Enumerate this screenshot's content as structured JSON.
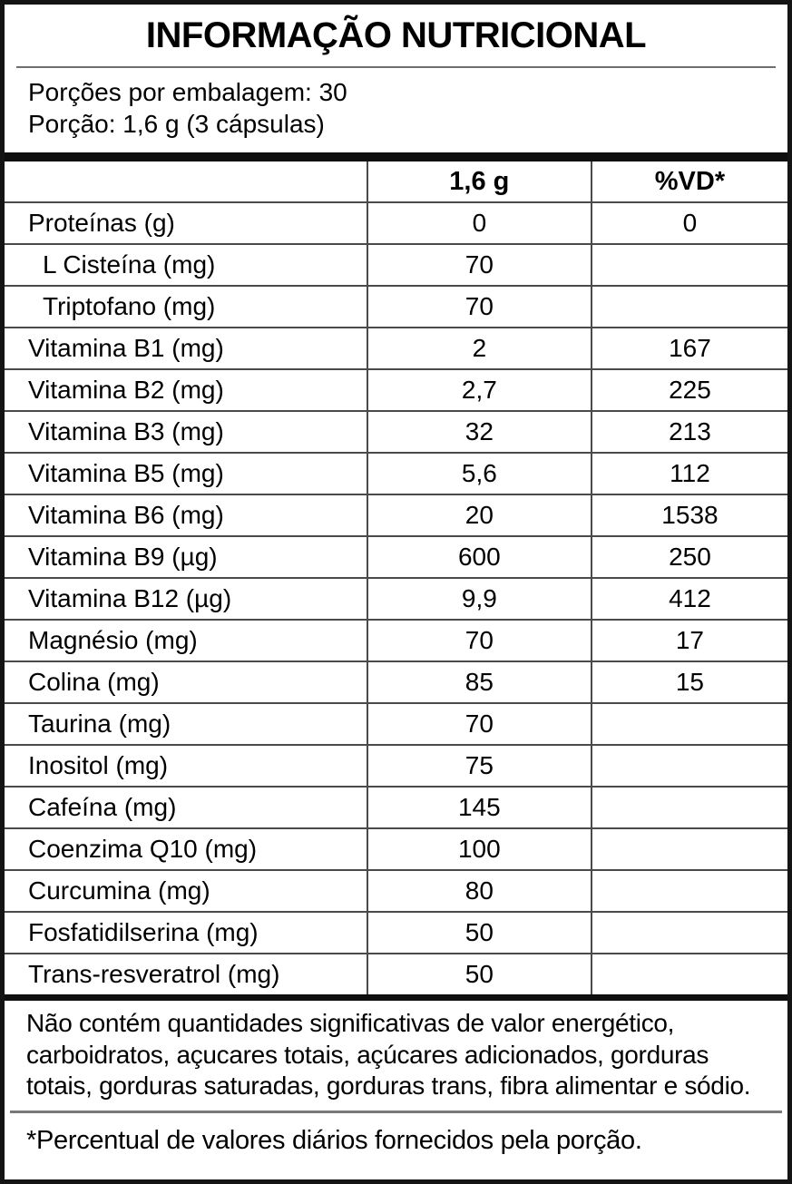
{
  "title": "INFORMAÇÃO NUTRICIONAL",
  "serving_info": {
    "servings_per_package": "Porções por embalagem: 30",
    "serving_size": "Porção: 1,6 g (3 cápsulas)"
  },
  "table": {
    "columns": {
      "nutrient": "",
      "amount": "1,6 g",
      "dv": "%VD*"
    },
    "rows": [
      {
        "name": "Proteínas (g)",
        "amount": "0",
        "dv": "0",
        "indent": false
      },
      {
        "name": "L Cisteína (mg)",
        "amount": "70",
        "dv": "",
        "indent": true
      },
      {
        "name": "Triptofano (mg)",
        "amount": "70",
        "dv": "",
        "indent": true
      },
      {
        "name": "Vitamina B1 (mg)",
        "amount": "2",
        "dv": "167",
        "indent": false
      },
      {
        "name": "Vitamina B2 (mg)",
        "amount": "2,7",
        "dv": "225",
        "indent": false
      },
      {
        "name": "Vitamina B3 (mg)",
        "amount": "32",
        "dv": "213",
        "indent": false
      },
      {
        "name": "Vitamina B5 (mg)",
        "amount": "5,6",
        "dv": "112",
        "indent": false
      },
      {
        "name": "Vitamina B6 (mg)",
        "amount": "20",
        "dv": "1538",
        "indent": false
      },
      {
        "name": "Vitamina B9 (µg)",
        "amount": "600",
        "dv": "250",
        "indent": false
      },
      {
        "name": "Vitamina B12 (µg)",
        "amount": "9,9",
        "dv": "412",
        "indent": false
      },
      {
        "name": "Magnésio (mg)",
        "amount": "70",
        "dv": "17",
        "indent": false
      },
      {
        "name": "Colina (mg)",
        "amount": "85",
        "dv": "15",
        "indent": false
      },
      {
        "name": "Taurina (mg)",
        "amount": "70",
        "dv": "",
        "indent": false
      },
      {
        "name": "Inositol (mg)",
        "amount": "75",
        "dv": "",
        "indent": false
      },
      {
        "name": "Cafeína (mg)",
        "amount": "145",
        "dv": "",
        "indent": false
      },
      {
        "name": "Coenzima Q10 (mg)",
        "amount": "100",
        "dv": "",
        "indent": false
      },
      {
        "name": "Curcumina (mg)",
        "amount": "80",
        "dv": "",
        "indent": false
      },
      {
        "name": "Fosfatidilserina (mg)",
        "amount": "50",
        "dv": "",
        "indent": false
      },
      {
        "name": "Trans-resveratrol (mg)",
        "amount": "50",
        "dv": "",
        "indent": false
      }
    ]
  },
  "notes": {
    "no_significant_amounts": "Não contém quantidades significativas de valor energético, carboidratos, açucares totais, açúcares adicionados, gorduras totais, gorduras saturadas, gorduras trans, fibra alimentar e sódio.",
    "daily_values_footnote": "*Percentual de valores diários fornecidos pela porção."
  },
  "colors": {
    "background": "#ffffff",
    "text": "#000000",
    "outer_border": "#141414",
    "thick_bar": "#0f0f0f",
    "grid_line": "#4a4a4a",
    "divider_line": "#787878"
  }
}
